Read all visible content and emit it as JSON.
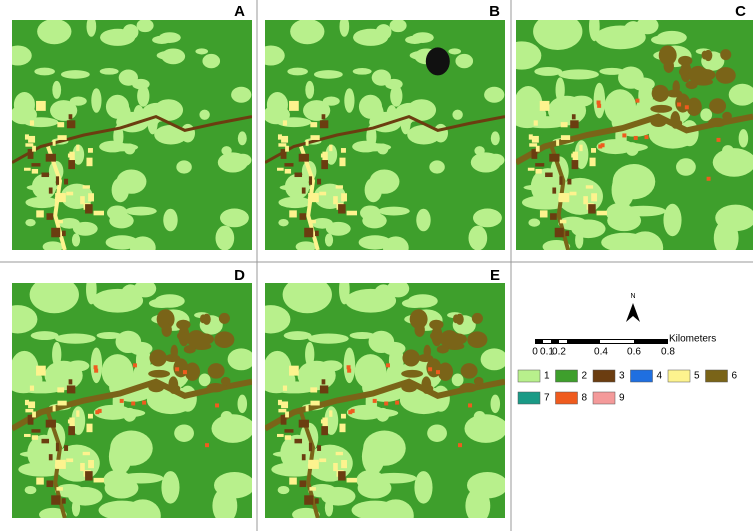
{
  "panels": [
    {
      "label": "A"
    },
    {
      "label": "B"
    },
    {
      "label": "C"
    },
    {
      "label": "D"
    },
    {
      "label": "E"
    }
  ],
  "north": "N",
  "scale": {
    "unit": "Kilometers",
    "ticks": [
      "0",
      "0.1",
      "0.2",
      "0.4",
      "0.6",
      "0.8"
    ]
  },
  "legend": [
    {
      "label": "1",
      "color": "#b8f08c"
    },
    {
      "label": "2",
      "color": "#3e9f2c"
    },
    {
      "label": "3",
      "color": "#6b3d10"
    },
    {
      "label": "4",
      "color": "#1f6fe0"
    },
    {
      "label": "5",
      "color": "#fdf38e"
    },
    {
      "label": "6",
      "color": "#7a6418"
    },
    {
      "label": "7",
      "color": "#1a9a86"
    },
    {
      "label": "8",
      "color": "#ef5b1e"
    },
    {
      "label": "9",
      "color": "#f49a9a"
    }
  ]
}
